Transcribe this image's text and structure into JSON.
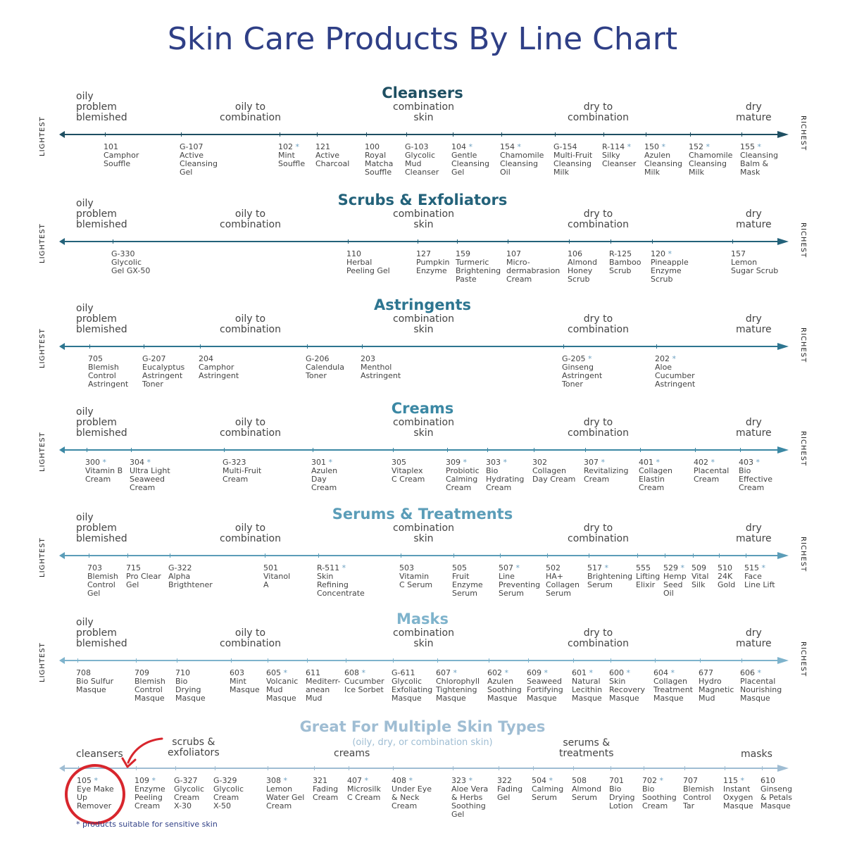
{
  "title": "Skin Care Products By Line Chart",
  "colors": {
    "title": "#2f3f86",
    "cleansers": "#1e4f62",
    "scrubs": "#23627a",
    "astringents": "#2d7590",
    "creams": "#3b88a4",
    "serums": "#5b9db8",
    "masks": "#7eb3cc",
    "multi": "#9fbdd3",
    "highlight": "#d8262d"
  },
  "side_labels": {
    "left": "LIGHTEST",
    "right": "RICHEST"
  },
  "zones": {
    "oily": "oily\nproblem\nblemished",
    "oily_combo": "oily to\ncombination",
    "combo": "combination\nskin",
    "dry_combo": "dry to\ncombination",
    "dry": "dry\nmature"
  },
  "sections": [
    {
      "title": "Cleansers",
      "products": [
        {
          "code": "101",
          "star": false,
          "name": "Camphor\nSouffle"
        },
        {
          "code": "G-107",
          "star": false,
          "name": "Active\nCleansing\nGel"
        },
        {
          "code": "102",
          "star": true,
          "name": "Mint\nSouffle"
        },
        {
          "code": "121",
          "star": false,
          "name": "Active\nCharcoal"
        },
        {
          "code": "100",
          "star": false,
          "name": "Royal\nMatcha\nSouffle"
        },
        {
          "code": "G-103",
          "star": false,
          "name": "Glycolic\nMud\nCleanser"
        },
        {
          "code": "104",
          "star": true,
          "name": "Gentle\nCleansing\nGel"
        },
        {
          "code": "154",
          "star": true,
          "name": "Chamomile\nCleansing\nOil"
        },
        {
          "code": "G-154",
          "star": false,
          "name": "Multi-Fruit\nCleansing\nMilk"
        },
        {
          "code": "R-114",
          "star": true,
          "name": "Silky\nCleanser"
        },
        {
          "code": "150",
          "star": true,
          "name": "Azulen\nCleansing\nMilk"
        },
        {
          "code": "152",
          "star": true,
          "name": "Chamomile\nCleansing\nMilk"
        },
        {
          "code": "155",
          "star": true,
          "name": "Cleansing\nBalm &\nMask"
        }
      ]
    },
    {
      "title": "Scrubs & Exfoliators",
      "products": [
        {
          "code": "G-330",
          "star": false,
          "name": "Glycolic\nGel GX-50"
        },
        {
          "code": "110",
          "star": false,
          "name": "Herbal\nPeeling Gel"
        },
        {
          "code": "127",
          "star": false,
          "name": "Pumpkin\nEnzyme"
        },
        {
          "code": "159",
          "star": false,
          "name": "Turmeric\nBrightening\nPaste"
        },
        {
          "code": "107",
          "star": false,
          "name": "Micro-\ndermabrasion\nCream"
        },
        {
          "code": "106",
          "star": false,
          "name": "Almond\nHoney\nScrub"
        },
        {
          "code": "R-125",
          "star": false,
          "name": "Bamboo\nScrub"
        },
        {
          "code": "120",
          "star": true,
          "name": "Pineapple\nEnzyme\nScrub"
        },
        {
          "code": "157",
          "star": false,
          "name": "Lemon\nSugar Scrub"
        }
      ]
    },
    {
      "title": "Astringents",
      "products": [
        {
          "code": "705",
          "star": false,
          "name": "Blemish\nControl\nAstringent"
        },
        {
          "code": "G-207",
          "star": false,
          "name": "Eucalyptus\nAstringent\nToner"
        },
        {
          "code": "204",
          "star": false,
          "name": "Camphor\nAstringent"
        },
        {
          "code": "G-206",
          "star": false,
          "name": "Calendula\nToner"
        },
        {
          "code": "203",
          "star": false,
          "name": "Menthol\nAstringent"
        },
        {
          "code": "G-205",
          "star": true,
          "name": "Ginseng\nAstringent\nToner"
        },
        {
          "code": "202",
          "star": true,
          "name": "Aloe\nCucumber\nAstringent"
        }
      ]
    },
    {
      "title": "Creams",
      "products": [
        {
          "code": "300",
          "star": true,
          "name": "Vitamin B\nCream"
        },
        {
          "code": "304",
          "star": true,
          "name": "Ultra Light\nSeaweed\nCream"
        },
        {
          "code": "G-323",
          "star": false,
          "name": "Multi-Fruit\nCream"
        },
        {
          "code": "301",
          "star": true,
          "name": "Azulen\nDay\nCream"
        },
        {
          "code": "305",
          "star": false,
          "name": "Vitaplex\nC Cream"
        },
        {
          "code": "309",
          "star": true,
          "name": "Probiotic\nCalming\nCream"
        },
        {
          "code": "303",
          "star": true,
          "name": "Bio\nHydrating\nCream"
        },
        {
          "code": "302",
          "star": false,
          "name": "Collagen\nDay Cream"
        },
        {
          "code": "307",
          "star": true,
          "name": "Revitalizing\nCream"
        },
        {
          "code": "401",
          "star": true,
          "name": "Collagen\nElastin\nCream"
        },
        {
          "code": "402",
          "star": true,
          "name": "Placental\nCream"
        },
        {
          "code": "403",
          "star": true,
          "name": "Bio\nEffective\nCream"
        }
      ]
    },
    {
      "title": "Serums & Treatments",
      "products": [
        {
          "code": "703",
          "star": false,
          "name": "Blemish\nControl\nGel"
        },
        {
          "code": "715",
          "star": false,
          "name": "Pro Clear\nGel"
        },
        {
          "code": "G-322",
          "star": false,
          "name": "Alpha\nBrigthtener"
        },
        {
          "code": "501",
          "star": false,
          "name": "Vitanol\nA"
        },
        {
          "code": "R-511",
          "star": true,
          "name": "Skin\nRefining\nConcentrate"
        },
        {
          "code": "503",
          "star": false,
          "name": "Vitamin\nC Serum"
        },
        {
          "code": "505",
          "star": false,
          "name": "Fruit\nEnzyme\nSerum"
        },
        {
          "code": "507",
          "star": true,
          "name": "Line\nPreventing\nSerum"
        },
        {
          "code": "502",
          "star": false,
          "name": "HA+\nCollagen\nSerum"
        },
        {
          "code": "517",
          "star": true,
          "name": "Brightening\nSerum"
        },
        {
          "code": "555",
          "star": false,
          "name": "Lifting\nElixir"
        },
        {
          "code": "529",
          "star": true,
          "name": "Hemp\nSeed\nOil"
        },
        {
          "code": "509",
          "star": false,
          "name": "Vital\nSilk"
        },
        {
          "code": "510",
          "star": false,
          "name": "24K\nGold"
        },
        {
          "code": "515",
          "star": true,
          "name": "Face\nLine Lift"
        }
      ]
    },
    {
      "title": "Masks",
      "products": [
        {
          "code": "708",
          "star": false,
          "name": "Bio Sulfur\nMasque"
        },
        {
          "code": "709",
          "star": false,
          "name": "Blemish\nControl\nMasque"
        },
        {
          "code": "710",
          "star": false,
          "name": "Bio\nDrying\nMasque"
        },
        {
          "code": "603",
          "star": false,
          "name": "Mint\nMasque"
        },
        {
          "code": "605",
          "star": true,
          "name": "Volcanic\nMud\nMasque"
        },
        {
          "code": "611",
          "star": false,
          "name": "Mediterr-\nanean\nMud"
        },
        {
          "code": "608",
          "star": true,
          "name": "Cucumber\nIce Sorbet"
        },
        {
          "code": "G-611",
          "star": false,
          "name": "Glycolic\nExfoliating\nMasque"
        },
        {
          "code": "607",
          "star": true,
          "name": "Chlorophyll\nTightening\nMasque"
        },
        {
          "code": "602",
          "star": true,
          "name": "Azulen\nSoothing\nMasque"
        },
        {
          "code": "609",
          "star": true,
          "name": "Seaweed\nFortifying\nMasque"
        },
        {
          "code": "601",
          "star": true,
          "name": "Natural\nLecithin\nMasque"
        },
        {
          "code": "600",
          "star": true,
          "name": "Skin\nRecovery\nMasque"
        },
        {
          "code": "604",
          "star": true,
          "name": "Collagen\nTreatment\nMasque"
        },
        {
          "code": "677",
          "star": false,
          "name": "Hydro\nMagnetic\nMud"
        },
        {
          "code": "606",
          "star": true,
          "name": "Placental\nNourishing\nMasque"
        }
      ]
    }
  ],
  "multi": {
    "title": "Great For Multiple Skin Types",
    "subtitle": "(oily, dry, or combination skin)",
    "categories": {
      "cleansers": "cleansers",
      "scrubs": "scrubs &\nexfoliators",
      "creams": "creams",
      "serums": "serums &\ntreatments",
      "masks": "masks"
    },
    "products": [
      {
        "code": "105",
        "star": true,
        "name": "Eye Make\nUp\nRemover"
      },
      {
        "code": "109",
        "star": true,
        "name": "Enzyme\nPeeling\nCream"
      },
      {
        "code": "G-327",
        "star": false,
        "name": "Glycolic\nCream\nX-30"
      },
      {
        "code": "G-329",
        "star": false,
        "name": "Glycolic\nCream\nX-50"
      },
      {
        "code": "308",
        "star": true,
        "name": "Lemon\nWater Gel\nCream"
      },
      {
        "code": "321",
        "star": false,
        "name": "Fading\nCream"
      },
      {
        "code": "407",
        "star": true,
        "name": "Microsilk\nC Cream"
      },
      {
        "code": "408",
        "star": true,
        "name": "Under Eye\n& Neck\nCream"
      },
      {
        "code": "323",
        "star": true,
        "name": "Aloe Vera\n& Herbs\nSoothing\nGel"
      },
      {
        "code": "322",
        "star": false,
        "name": "Fading\nGel"
      },
      {
        "code": "504",
        "star": true,
        "name": "Calming\nSerum"
      },
      {
        "code": "508",
        "star": false,
        "name": "Almond\nSerum"
      },
      {
        "code": "701",
        "star": false,
        "name": "Bio\nDrying\nLotion"
      },
      {
        "code": "702",
        "star": true,
        "name": "Bio\nSoothing\nCream"
      },
      {
        "code": "707",
        "star": false,
        "name": "Blemish\nControl\nTar"
      },
      {
        "code": "115",
        "star": true,
        "name": "Instant\nOxygen\nMasque"
      },
      {
        "code": "610",
        "star": false,
        "name": "Ginseng\n& Petals\nMasque"
      }
    ],
    "footnote": "* products suitable for sensitive skin"
  }
}
